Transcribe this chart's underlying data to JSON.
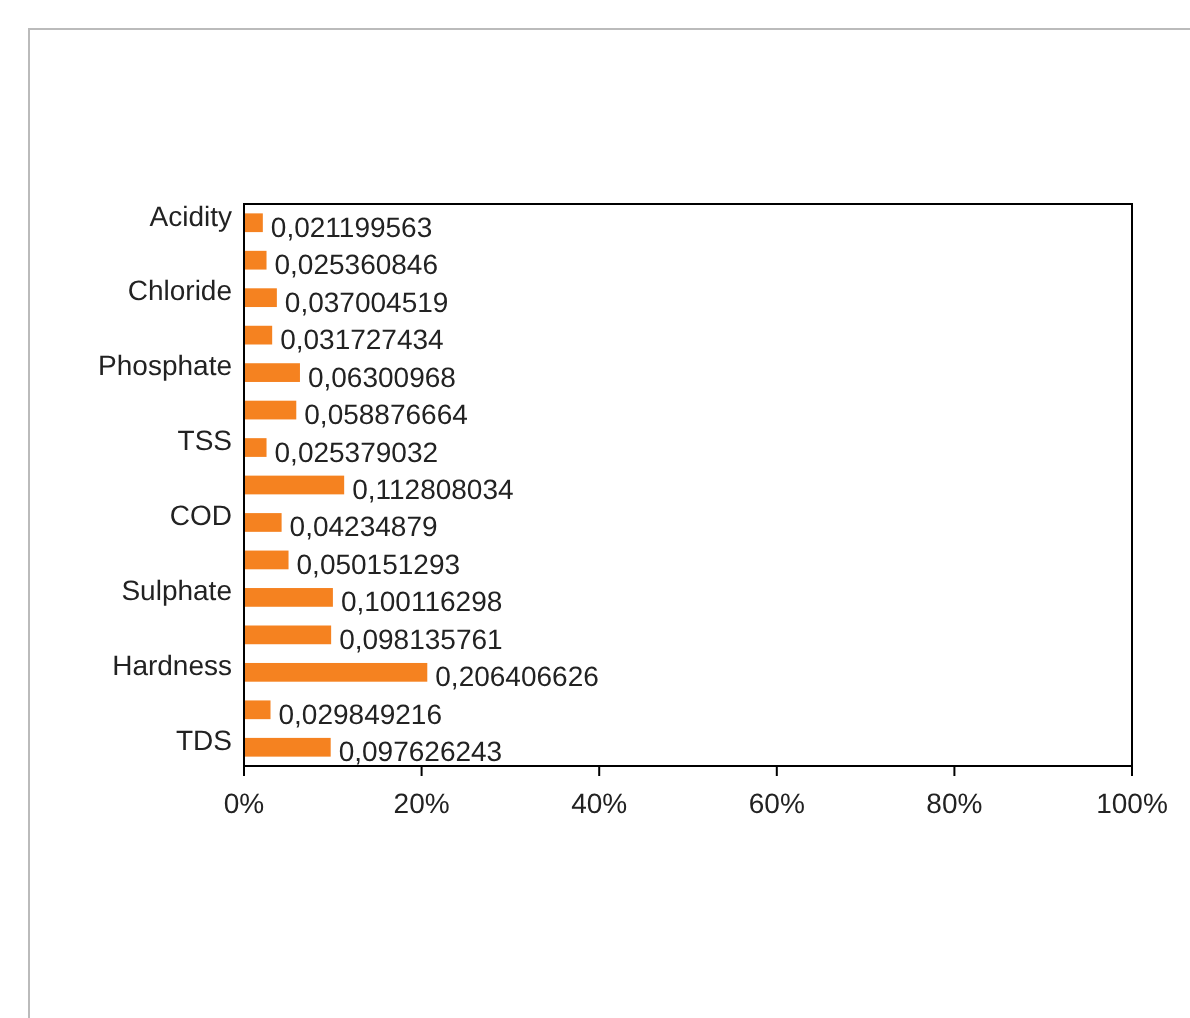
{
  "chart_data": {
    "type": "bar",
    "orientation": "horizontal",
    "categories": [
      "Acidity",
      null,
      "Chloride",
      null,
      "Phosphate",
      null,
      "TSS",
      null,
      "COD",
      null,
      "Sulphate",
      null,
      "Hardness",
      null,
      "TDS"
    ],
    "values": [
      0.021199563,
      0.025360846,
      0.037004519,
      0.031727434,
      0.06300968,
      0.058876664,
      0.025379032,
      0.112808034,
      0.04234879,
      0.050151293,
      0.100116298,
      0.098135761,
      0.206406626,
      0.029849216,
      0.097626243
    ],
    "value_labels": [
      "0,021199563",
      "0,025360846",
      "0,037004519",
      "0,031727434",
      "0,06300968",
      "0,058876664",
      "0,025379032",
      "0,112808034",
      "0,04234879",
      "0,050151293",
      "0,100116298",
      "0,098135761",
      "0,206406626",
      "0,029849216",
      "0,097626243"
    ],
    "color": "#f58220",
    "xlim": [
      0,
      1
    ],
    "xticks": [
      {
        "value": 0,
        "label": "0%"
      },
      {
        "value": 0.2,
        "label": "20%"
      },
      {
        "value": 0.4,
        "label": "40%"
      },
      {
        "value": 0.6,
        "label": "60%"
      },
      {
        "value": 0.8,
        "label": "80%"
      },
      {
        "value": 1,
        "label": "100%"
      }
    ],
    "grid": false
  }
}
